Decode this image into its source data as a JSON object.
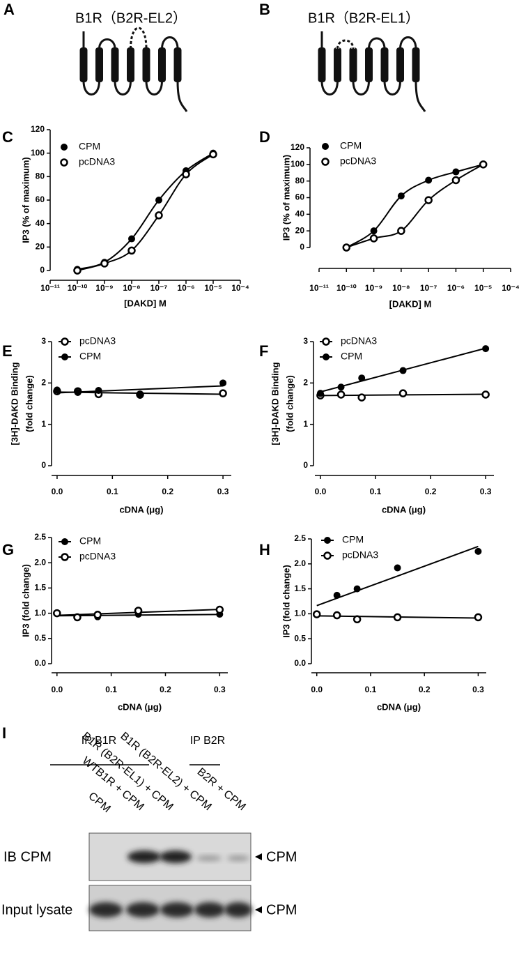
{
  "diagrams": [
    {
      "label": "A",
      "title": "B1R（B2R-EL2）"
    },
    {
      "label": "B",
      "title": "B1R（B2R-EL1）"
    }
  ],
  "chart_data": [
    {
      "type": "dose_response",
      "panel_label": "C",
      "log_x": true,
      "fit": "sigmoid",
      "x_label": "[DAKD] M",
      "y_label": "IP3 (% of maximum)",
      "x": [
        1e-10,
        1e-09,
        1e-08,
        1e-07,
        1e-06,
        1e-05
      ],
      "series": [
        {
          "name": "CPM",
          "color": "#000000",
          "marker": "filled",
          "values": [
            1,
            7,
            27,
            60,
            85,
            100
          ]
        },
        {
          "name": "pcDNA3",
          "color": "#000000",
          "marker": "open",
          "values": [
            0,
            6,
            17,
            47,
            82,
            99
          ]
        }
      ],
      "xlim": [
        1e-11,
        0.0001
      ],
      "xticks": [
        {
          "value": 1e-11,
          "label": "10⁻¹¹"
        },
        {
          "value": 1e-10,
          "label": "10⁻¹⁰"
        },
        {
          "value": 1e-09,
          "label": "10⁻⁹"
        },
        {
          "value": 1e-08,
          "label": "10⁻⁸"
        },
        {
          "value": 1e-07,
          "label": "10⁻⁷"
        },
        {
          "value": 1e-06,
          "label": "10⁻⁶"
        },
        {
          "value": 1e-05,
          "label": "10⁻⁵"
        },
        {
          "value": 0.0001,
          "label": "10⁻⁴"
        }
      ],
      "ylim": [
        0,
        120
      ],
      "yticks": [
        0,
        20,
        40,
        60,
        80,
        100,
        120
      ]
    },
    {
      "type": "dose_response",
      "panel_label": "D",
      "log_x": true,
      "fit": "sigmoid",
      "x_label": "[DAKD] M",
      "y_label": "IP3 (% of maximum)",
      "x": [
        1e-10,
        1e-09,
        1e-08,
        1e-07,
        1e-06,
        1e-05
      ],
      "series": [
        {
          "name": "CPM",
          "color": "#000000",
          "marker": "filled",
          "values": [
            0,
            20,
            62,
            81,
            91,
            100
          ]
        },
        {
          "name": "pcDNA3",
          "color": "#000000",
          "marker": "open",
          "values": [
            0,
            11,
            20,
            57,
            81,
            100
          ]
        }
      ],
      "xlim": [
        1e-11,
        0.0001
      ],
      "xticks": [
        {
          "value": 1e-11,
          "label": "10⁻¹¹"
        },
        {
          "value": 1e-10,
          "label": "10⁻¹⁰"
        },
        {
          "value": 1e-09,
          "label": "10⁻⁹"
        },
        {
          "value": 1e-08,
          "label": "10⁻⁸"
        },
        {
          "value": 1e-07,
          "label": "10⁻⁷"
        },
        {
          "value": 1e-06,
          "label": "10⁻⁶"
        },
        {
          "value": 1e-05,
          "label": "10⁻⁵"
        },
        {
          "value": 0.0001,
          "label": "10⁻⁴"
        }
      ],
      "ylim": [
        0,
        120
      ],
      "yticks": [
        0,
        20,
        40,
        60,
        80,
        100,
        120
      ]
    },
    {
      "type": "scatter",
      "panel_label": "E",
      "fit": "linear",
      "x_label": "cDNA (μg)",
      "y_label": [
        "[3H]-DAKD Binding",
        "(fold change)"
      ],
      "x": [
        0,
        0.0375,
        0.075,
        0.15,
        0.3
      ],
      "series": [
        {
          "name": "pcDNA3",
          "color": "#000000",
          "marker": "open",
          "values": [
            1.8,
            1.8,
            1.73,
            1.72,
            1.75
          ]
        },
        {
          "name": "CPM",
          "color": "#000000",
          "marker": "filled",
          "values": [
            1.83,
            1.77,
            1.82,
            1.7,
            2.0
          ]
        }
      ],
      "xlim": [
        -0.01,
        0.315
      ],
      "xticks": [
        {
          "value": 0,
          "label": "0.0"
        },
        0.1,
        0.2,
        0.3
      ],
      "ylim": [
        0,
        3
      ],
      "yticks": [
        0,
        1,
        2,
        3
      ]
    },
    {
      "type": "scatter",
      "panel_label": "F",
      "fit": "linear",
      "x_label": "cDNA (μg)",
      "y_label": [
        "[3H]-DAKD Binding",
        "(fold change)"
      ],
      "x": [
        0,
        0.0375,
        0.075,
        0.15,
        0.3
      ],
      "series": [
        {
          "name": "pcDNA3",
          "color": "#000000",
          "marker": "open",
          "values": [
            1.7,
            1.72,
            1.65,
            1.75,
            1.72
          ]
        },
        {
          "name": "CPM",
          "color": "#000000",
          "marker": "filled",
          "values": [
            1.75,
            1.9,
            2.12,
            2.3,
            2.83
          ]
        }
      ],
      "xlim": [
        -0.01,
        0.315
      ],
      "xticks": [
        {
          "value": 0,
          "label": "0.0"
        },
        0.1,
        0.2,
        0.3
      ],
      "ylim": [
        0,
        3
      ],
      "yticks": [
        0,
        1,
        2,
        3
      ]
    },
    {
      "type": "scatter",
      "panel_label": "G",
      "fit": "linear",
      "x_label": "cDNA (μg)",
      "y_label": "IP3 (fold change)",
      "x": [
        0,
        0.0375,
        0.075,
        0.15,
        0.3
      ],
      "series": [
        {
          "name": "CPM",
          "color": "#000000",
          "marker": "filled",
          "values": [
            1.0,
            0.91,
            0.93,
            0.98,
            0.98
          ]
        },
        {
          "name": "pcDNA3",
          "color": "#000000",
          "marker": "open",
          "values": [
            1.0,
            0.92,
            0.97,
            1.05,
            1.07
          ]
        }
      ],
      "xlim": [
        -0.01,
        0.315
      ],
      "xticks": [
        {
          "value": 0,
          "label": "0.0"
        },
        0.1,
        0.2,
        0.3
      ],
      "ylim": [
        0,
        2.5
      ],
      "yticks": [
        {
          "value": 0,
          "label": "0.0"
        },
        0.5,
        {
          "value": 1,
          "label": "1.0"
        },
        1.5,
        {
          "value": 2,
          "label": "2.0"
        },
        2.5
      ]
    },
    {
      "type": "scatter",
      "panel_label": "H",
      "fit": "linear",
      "x_label": "cDNA (μg)",
      "y_label": "IP3 (fold change)",
      "x": [
        0,
        0.0375,
        0.075,
        0.15,
        0.3
      ],
      "series": [
        {
          "name": "CPM",
          "color": "#000000",
          "marker": "filled",
          "values": [
            1.0,
            1.37,
            1.5,
            1.92,
            2.25
          ]
        },
        {
          "name": "pcDNA3",
          "color": "#000000",
          "marker": "open",
          "values": [
            0.99,
            0.97,
            0.89,
            0.93,
            0.93
          ]
        }
      ],
      "xlim": [
        -0.01,
        0.315
      ],
      "xticks": [
        {
          "value": 0,
          "label": "0.0"
        },
        0.1,
        0.2,
        0.3
      ],
      "ylim": [
        0,
        2.5
      ],
      "yticks": [
        {
          "value": 0,
          "label": "0.0"
        },
        0.5,
        {
          "value": 1,
          "label": "1.0"
        },
        1.5,
        {
          "value": 2,
          "label": "2.0"
        },
        2.5
      ]
    }
  ],
  "blot": {
    "label": "I",
    "groups": [
      "IP B1R",
      "IP B2R"
    ],
    "lanes": [
      "CPM",
      "WTB1R + CPM",
      "B1R (B2R-EL1) + CPM",
      "B1R (B2R-EL2) + CPM",
      "B2R + CPM"
    ],
    "rows": [
      "IB CPM",
      "Input lysate"
    ],
    "markers": [
      "CPM",
      "CPM"
    ]
  }
}
